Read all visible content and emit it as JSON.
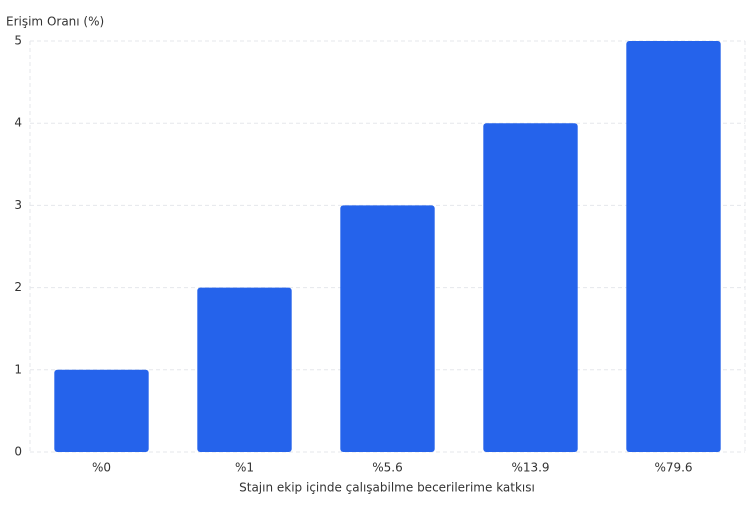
{
  "chart_data": {
    "type": "bar",
    "y_label": "Erişim Oranı (%)",
    "x_label": "Stajın ekip içinde çalışabilme becerilerime katkısı",
    "categories": [
      "%0",
      "%1",
      "%5.6",
      "%13.9",
      "%79.6"
    ],
    "values": [
      1,
      2,
      3,
      4,
      5
    ],
    "color": "#2563eb",
    "ylim": [
      0,
      5
    ],
    "yticks": [
      0,
      1,
      2,
      3,
      4,
      5
    ],
    "grid": true
  }
}
